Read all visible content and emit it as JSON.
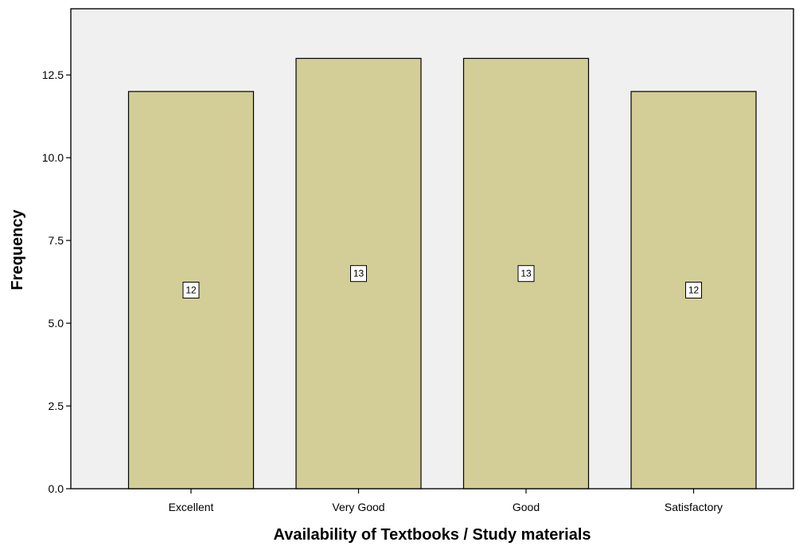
{
  "chart_data": {
    "type": "bar",
    "categories": [
      "Excellent",
      "Very Good",
      "Good",
      "Satisfactory"
    ],
    "values": [
      12,
      13,
      13,
      12
    ],
    "data_labels": [
      "12",
      "13",
      "13",
      "12"
    ],
    "title": "",
    "xlabel": "Availability of Textbooks / Study materials",
    "ylabel": "Frequency",
    "ylim": [
      0,
      14.5
    ],
    "yticks": [
      0,
      2.5,
      5,
      7.5,
      10,
      12.5
    ],
    "ytick_labels": [
      "0.0",
      "2.5",
      "5.0",
      "7.5",
      "10.0",
      "12.5"
    ],
    "grid": false,
    "legend": "none",
    "colors": {
      "plot_background": "#f0f0f0",
      "bar_fill": "#d3ce97",
      "bar_stroke": "#000000",
      "label_box_fill": "#ffffff"
    }
  }
}
